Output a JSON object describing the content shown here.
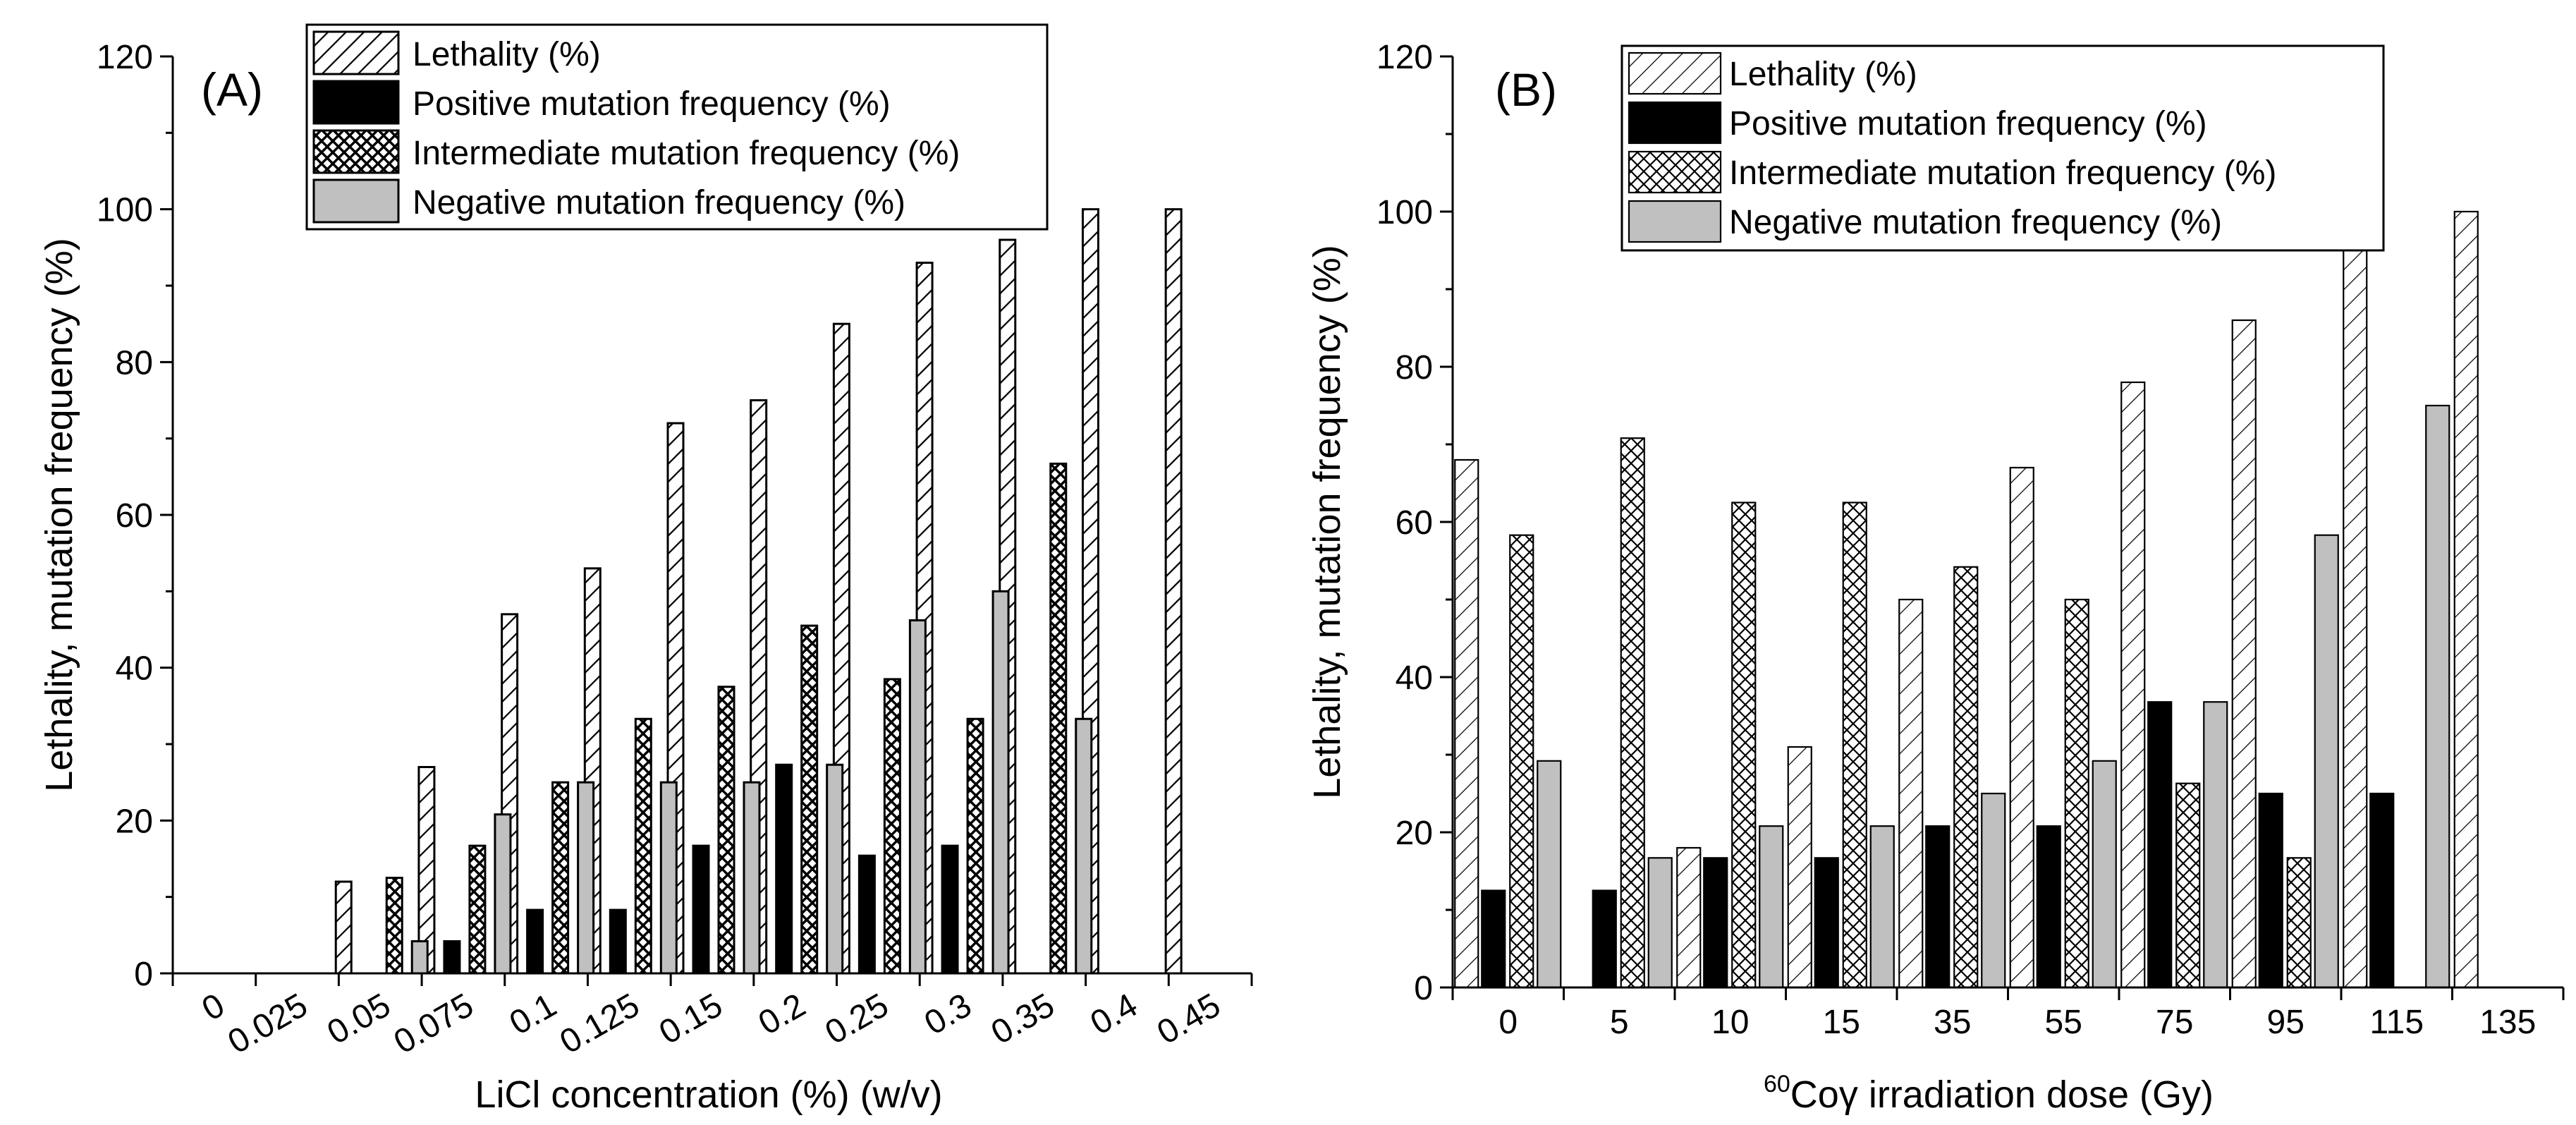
{
  "figure": {
    "panels": [
      "A",
      "B"
    ]
  },
  "colors": {
    "positive": "#000000",
    "negative": "#c0c0c0",
    "outline": "#000000",
    "background": "#ffffff"
  },
  "chart_data": [
    {
      "type": "bar",
      "panel_label": "(A)",
      "xlabel": "LiCl concentration (%) (w/v)",
      "ylabel": "Lethality, mutation frequency (%)",
      "ylim": [
        0,
        120
      ],
      "yticks": [
        0,
        20,
        40,
        60,
        80,
        100,
        120
      ],
      "categories": [
        "0",
        "0.025",
        "0.05",
        "0.075",
        "0.1",
        "0.125",
        "0.15",
        "0.2",
        "0.25",
        "0.3",
        "0.35",
        "0.4",
        "0.45"
      ],
      "legend": [
        "Lethality (%)",
        "Positive mutation frequency (%)",
        "Intermediate mutation frequency (%)",
        "Negative mutation frequency (%)"
      ],
      "series": [
        {
          "name": "Lethality (%)",
          "pattern": "hatch-diagonal-heavy",
          "values": [
            0,
            0,
            12,
            27,
            47,
            53,
            72,
            75,
            85,
            93,
            96,
            100,
            100
          ]
        },
        {
          "name": "Positive mutation frequency (%)",
          "pattern": "solid-black",
          "values": [
            0,
            0,
            0,
            4.2,
            8.3,
            8.3,
            16.7,
            27.3,
            15.4,
            16.7,
            0,
            0,
            0
          ]
        },
        {
          "name": "Intermediate mutation frequency (%)",
          "pattern": "crosshatch-heavy",
          "values": [
            0,
            0,
            12.5,
            16.7,
            25,
            33.3,
            37.5,
            45.5,
            38.5,
            33.3,
            66.7,
            0,
            0
          ]
        },
        {
          "name": "Negative mutation frequency (%)",
          "pattern": "solid-gray",
          "values": [
            0,
            0,
            4.2,
            20.8,
            25,
            25,
            25,
            27.3,
            46.2,
            50,
            33.3,
            0,
            0
          ]
        }
      ]
    },
    {
      "type": "bar",
      "panel_label": "(B)",
      "xlabel_sup": "60",
      "xlabel": "Coγ irradiation dose (Gy)",
      "ylabel": "Lethality, mutation frequency (%)",
      "ylim": [
        0,
        120
      ],
      "yticks": [
        0,
        20,
        40,
        60,
        80,
        100,
        120
      ],
      "categories": [
        "0",
        "5",
        "10",
        "15",
        "35",
        "55",
        "75",
        "95",
        "115",
        "135"
      ],
      "legend": [
        "Lethality (%)",
        "Positive mutation frequency (%)",
        "Intermediate mutation frequency (%)",
        "Negative mutation frequency (%)"
      ],
      "series": [
        {
          "name": "Lethality (%)",
          "pattern": "hatch-diagonal-light",
          "values": [
            68,
            0,
            18,
            31,
            50,
            67,
            78,
            86,
            95,
            100
          ]
        },
        {
          "name": "Positive mutation frequency (%)",
          "pattern": "solid-black",
          "values": [
            12.5,
            12.5,
            16.7,
            16.7,
            20.8,
            20.8,
            36.8,
            25,
            25,
            0
          ]
        },
        {
          "name": "Intermediate mutation frequency (%)",
          "pattern": "crosshatch-light",
          "values": [
            58.3,
            70.8,
            62.5,
            62.5,
            54.2,
            50,
            26.3,
            16.7,
            0,
            0
          ]
        },
        {
          "name": "Negative mutation frequency (%)",
          "pattern": "solid-gray",
          "values": [
            29.2,
            16.7,
            20.8,
            20.8,
            25,
            29.2,
            36.8,
            58.3,
            75,
            0
          ]
        }
      ]
    }
  ]
}
